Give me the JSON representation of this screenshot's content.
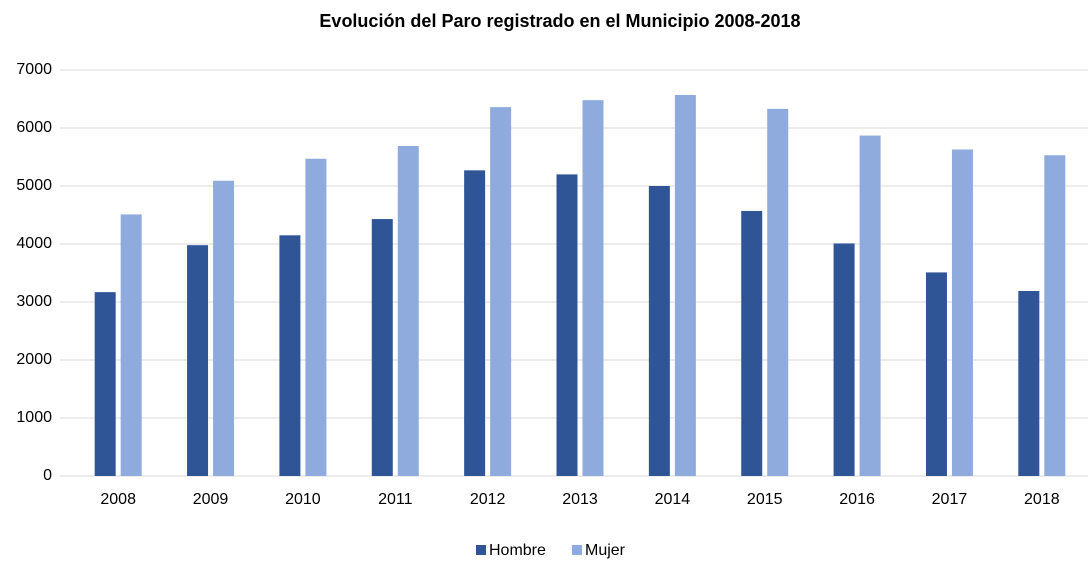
{
  "chart_data": {
    "type": "bar",
    "title": "Evolución del Paro registrado en el Municipio 2008-2018",
    "categories": [
      "2008",
      "2009",
      "2010",
      "2011",
      "2012",
      "2013",
      "2014",
      "2015",
      "2016",
      "2017",
      "2018"
    ],
    "series": [
      {
        "name": "Hombre",
        "color": "#2f5597",
        "values": [
          3170,
          3980,
          4150,
          4430,
          5270,
          5200,
          5000,
          4570,
          4010,
          3510,
          3190
        ]
      },
      {
        "name": "Mujer",
        "color": "#8faadc",
        "values": [
          4510,
          5090,
          5470,
          5690,
          6360,
          6480,
          6570,
          6330,
          5870,
          5630,
          5530
        ]
      }
    ],
    "ylim": [
      0,
      7000
    ],
    "yticks": [
      0,
      1000,
      2000,
      3000,
      4000,
      5000,
      6000,
      7000
    ],
    "grid": true,
    "legend": "bottom"
  }
}
